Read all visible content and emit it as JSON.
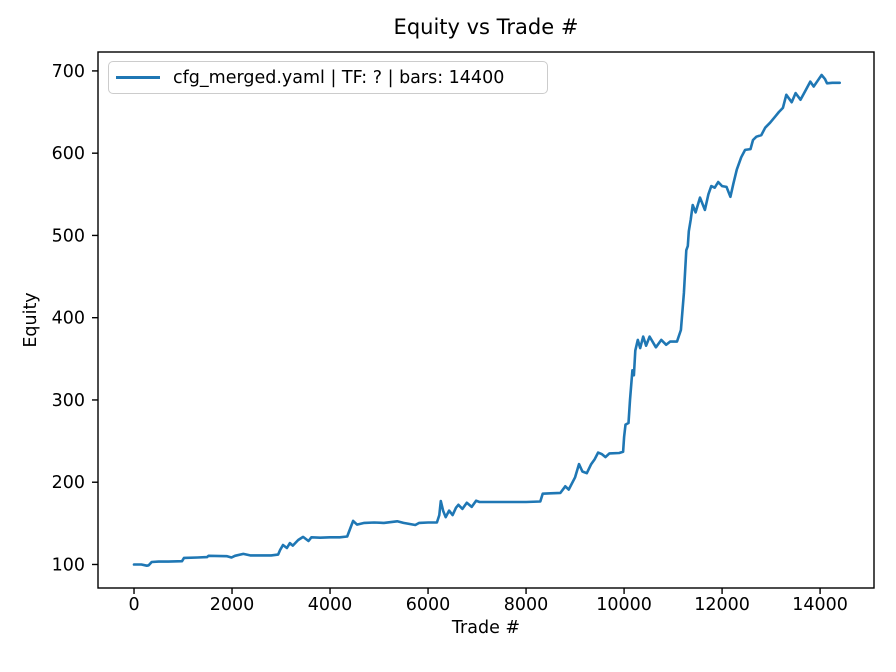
{
  "figure": {
    "background": "#ffffff"
  },
  "colors": {
    "line": "#1f77b4",
    "text": "#000000",
    "spine": "#000000",
    "legend_border": "#cccccc",
    "background": "#ffffff"
  },
  "chart_data": {
    "type": "line",
    "title": "Equity vs Trade #",
    "xlabel": "Trade #",
    "ylabel": "Equity",
    "grid": false,
    "xlim": [
      -735,
      15100
    ],
    "ylim": [
      71.4,
      723
    ],
    "xticks": [
      0,
      2000,
      4000,
      6000,
      8000,
      10000,
      12000,
      14000
    ],
    "yticks": [
      100,
      200,
      300,
      400,
      500,
      600,
      700
    ],
    "legend": {
      "position": "upper left",
      "entries": [
        {
          "label": "cfg_merged.yaml | TF: ? | bars: 14400",
          "color": "#1f77b4"
        }
      ]
    },
    "series": [
      {
        "name": "cfg_merged.yaml | TF: ? | bars: 14400",
        "color": "#1f77b4",
        "x": [
          0,
          150,
          260,
          300,
          360,
          500,
          700,
          980,
          1020,
          1300,
          1490,
          1520,
          1900,
          1990,
          2060,
          2230,
          2370,
          2510,
          2800,
          2940,
          2980,
          3040,
          3120,
          3180,
          3240,
          3350,
          3450,
          3560,
          3620,
          3800,
          4000,
          4200,
          4350,
          4420,
          4470,
          4550,
          4700,
          4900,
          5100,
          5370,
          5500,
          5740,
          5820,
          6000,
          6180,
          6230,
          6260,
          6310,
          6360,
          6430,
          6500,
          6570,
          6620,
          6700,
          6790,
          6890,
          6980,
          7050,
          7300,
          7600,
          8000,
          8290,
          8340,
          8500,
          8700,
          8800,
          8870,
          9000,
          9080,
          9150,
          9240,
          9330,
          9400,
          9470,
          9550,
          9620,
          9700,
          9900,
          9980,
          10000,
          10030,
          10090,
          10120,
          10170,
          10200,
          10230,
          10280,
          10330,
          10390,
          10450,
          10520,
          10650,
          10760,
          10860,
          10940,
          11080,
          11160,
          11220,
          11270,
          11300,
          11320,
          11360,
          11400,
          11460,
          11550,
          11650,
          11720,
          11780,
          11850,
          11920,
          12000,
          12090,
          12170,
          12230,
          12300,
          12390,
          12470,
          12580,
          12630,
          12700,
          12800,
          12880,
          12980,
          13090,
          13160,
          13240,
          13310,
          13420,
          13500,
          13600,
          13700,
          13800,
          13870,
          13950,
          14030,
          14100,
          14140,
          14250,
          14400
        ],
        "y": [
          100,
          100,
          98.5,
          99,
          103,
          103.5,
          103.5,
          104,
          108,
          108.5,
          109,
          110.5,
          110,
          108.5,
          110.5,
          112.8,
          111,
          111,
          111,
          112,
          117.6,
          123.7,
          120,
          126,
          123,
          129.8,
          133.5,
          128.5,
          133,
          132.5,
          133,
          133,
          134,
          145,
          153,
          148.5,
          150.5,
          151,
          150.5,
          152.5,
          150.5,
          148,
          150.5,
          151,
          151,
          160,
          177,
          165,
          157.5,
          165.5,
          160,
          169,
          172.5,
          167.5,
          175,
          170,
          177.5,
          176,
          176,
          176,
          176,
          176.5,
          186,
          186.5,
          187,
          195,
          191,
          206,
          222,
          213,
          211,
          222,
          228,
          236,
          234,
          230.5,
          235,
          235.5,
          237,
          255,
          270,
          272,
          300,
          336,
          330,
          360,
          373,
          363,
          377,
          366,
          377,
          364,
          373,
          367,
          371,
          371,
          385,
          430,
          482,
          487,
          505,
          519,
          537,
          528,
          546,
          531,
          550,
          560,
          558,
          565,
          560,
          559,
          547,
          563,
          580,
          595,
          604,
          605,
          616,
          620,
          622,
          631,
          637,
          645,
          650,
          655,
          671,
          662,
          673,
          665,
          676,
          687,
          681,
          688,
          695,
          690,
          685,
          685.5,
          685.5
        ]
      }
    ]
  }
}
